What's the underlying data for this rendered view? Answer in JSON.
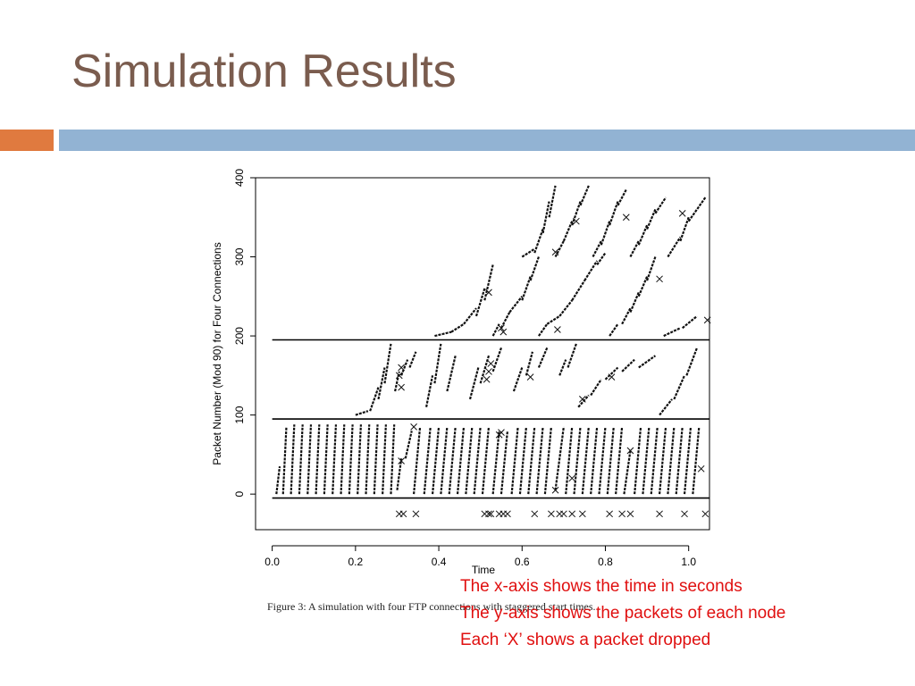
{
  "slide": {
    "title": "Simulation Results",
    "accent_colors": {
      "orange": "#e07a3f",
      "blue": "#92b3d3",
      "title": "#7a5c4e",
      "notes": "#e01010"
    }
  },
  "figure": {
    "caption": "Figure 3: A simulation with four FTP connections with staggered start times."
  },
  "notes": [
    "The x-axis shows the time in seconds",
    "The y-axis shows the packets of each node",
    "Each ‘X’ shows a packet dropped"
  ],
  "chart_data": {
    "type": "scatter",
    "title": "",
    "xlabel": "Time",
    "ylabel": "Packet Number (Mod 90) for Four Connections",
    "xlim": [
      -0.04,
      1.05
    ],
    "ylim": [
      -45,
      400
    ],
    "x_ticks": [
      "0.0",
      "0.2",
      "0.4",
      "0.6",
      "0.8",
      "1.0"
    ],
    "x_tick_values": [
      0.0,
      0.2,
      0.4,
      0.6,
      0.8,
      1.0
    ],
    "y_ticks": [
      "0",
      "100",
      "200",
      "300",
      "400"
    ],
    "y_tick_values": [
      0,
      100,
      200,
      300,
      400
    ],
    "separator_lines_y": [
      -5,
      95,
      195
    ],
    "grid": false,
    "legend": "none",
    "series": [
      {
        "connection": 1,
        "base": 0,
        "segments": [
          [
            0.01,
            0.018,
            0,
            35
          ],
          [
            0.026,
            0.034,
            0,
            85
          ],
          [
            0.045,
            0.053,
            0,
            88
          ],
          [
            0.065,
            0.073,
            0,
            88
          ],
          [
            0.085,
            0.093,
            0,
            88
          ],
          [
            0.105,
            0.113,
            0,
            88
          ],
          [
            0.125,
            0.133,
            0,
            88
          ],
          [
            0.145,
            0.153,
            0,
            88
          ],
          [
            0.165,
            0.173,
            0,
            88
          ],
          [
            0.185,
            0.193,
            0,
            88
          ],
          [
            0.205,
            0.213,
            0,
            88
          ],
          [
            0.225,
            0.233,
            0,
            88
          ],
          [
            0.245,
            0.253,
            0,
            88
          ],
          [
            0.265,
            0.273,
            0,
            88
          ],
          [
            0.285,
            0.293,
            0,
            88
          ],
          [
            0.3,
            0.31,
            5,
            45
          ],
          [
            0.32,
            0.335,
            45,
            80
          ],
          [
            0.34,
            0.355,
            0,
            85
          ],
          [
            0.365,
            0.38,
            0,
            85
          ],
          [
            0.385,
            0.4,
            0,
            85
          ],
          [
            0.405,
            0.42,
            0,
            85
          ],
          [
            0.425,
            0.44,
            0,
            85
          ],
          [
            0.445,
            0.46,
            0,
            85
          ],
          [
            0.465,
            0.48,
            0,
            85
          ],
          [
            0.485,
            0.5,
            0,
            85
          ],
          [
            0.505,
            0.52,
            0,
            85
          ],
          [
            0.53,
            0.545,
            0,
            80
          ],
          [
            0.55,
            0.565,
            0,
            80
          ],
          [
            0.575,
            0.59,
            0,
            85
          ],
          [
            0.595,
            0.61,
            0,
            85
          ],
          [
            0.615,
            0.63,
            0,
            85
          ],
          [
            0.635,
            0.65,
            0,
            85
          ],
          [
            0.655,
            0.67,
            0,
            85
          ],
          [
            0.68,
            0.7,
            5,
            85
          ],
          [
            0.705,
            0.72,
            0,
            85
          ],
          [
            0.725,
            0.74,
            0,
            85
          ],
          [
            0.745,
            0.76,
            0,
            85
          ],
          [
            0.765,
            0.78,
            0,
            85
          ],
          [
            0.785,
            0.8,
            0,
            85
          ],
          [
            0.805,
            0.82,
            0,
            85
          ],
          [
            0.825,
            0.84,
            0,
            85
          ],
          [
            0.845,
            0.86,
            0,
            55
          ],
          [
            0.87,
            0.885,
            0,
            85
          ],
          [
            0.89,
            0.905,
            0,
            85
          ],
          [
            0.91,
            0.925,
            0,
            85
          ],
          [
            0.93,
            0.945,
            0,
            85
          ],
          [
            0.95,
            0.965,
            0,
            85
          ],
          [
            0.97,
            0.985,
            0,
            85
          ],
          [
            0.99,
            1.005,
            0,
            85
          ],
          [
            1.01,
            1.025,
            0,
            85
          ]
        ]
      },
      {
        "connection": 2,
        "base": 100,
        "segments": [
          [
            0.2,
            0.23,
            100,
            105
          ],
          [
            0.235,
            0.255,
            105,
            135
          ],
          [
            0.255,
            0.27,
            120,
            160
          ],
          [
            0.27,
            0.285,
            140,
            190
          ],
          [
            0.295,
            0.305,
            130,
            155
          ],
          [
            0.31,
            0.325,
            150,
            170
          ],
          [
            0.33,
            0.345,
            160,
            180
          ],
          [
            0.37,
            0.385,
            110,
            150
          ],
          [
            0.39,
            0.405,
            140,
            190
          ],
          [
            0.42,
            0.44,
            130,
            175
          ],
          [
            0.475,
            0.495,
            120,
            160
          ],
          [
            0.5,
            0.52,
            140,
            175
          ],
          [
            0.53,
            0.55,
            155,
            185
          ],
          [
            0.58,
            0.6,
            130,
            160
          ],
          [
            0.61,
            0.625,
            150,
            180
          ],
          [
            0.64,
            0.66,
            160,
            185
          ],
          [
            0.69,
            0.705,
            150,
            170
          ],
          [
            0.71,
            0.73,
            160,
            190
          ],
          [
            0.735,
            0.76,
            110,
            125
          ],
          [
            0.765,
            0.79,
            125,
            145
          ],
          [
            0.8,
            0.83,
            145,
            160
          ],
          [
            0.84,
            0.87,
            155,
            170
          ],
          [
            0.88,
            0.92,
            160,
            175
          ],
          [
            0.93,
            0.96,
            100,
            120
          ],
          [
            0.965,
            0.99,
            120,
            150
          ],
          [
            0.995,
            1.02,
            150,
            185
          ]
        ]
      },
      {
        "connection": 3,
        "base": 200,
        "segments": [
          [
            0.39,
            0.43,
            200,
            205
          ],
          [
            0.43,
            0.46,
            205,
            215
          ],
          [
            0.46,
            0.49,
            215,
            235
          ],
          [
            0.49,
            0.51,
            225,
            260
          ],
          [
            0.51,
            0.53,
            245,
            290
          ],
          [
            0.53,
            0.545,
            200,
            215
          ],
          [
            0.55,
            0.57,
            210,
            230
          ],
          [
            0.57,
            0.6,
            230,
            250
          ],
          [
            0.6,
            0.62,
            245,
            275
          ],
          [
            0.62,
            0.64,
            270,
            300
          ],
          [
            0.64,
            0.66,
            200,
            215
          ],
          [
            0.66,
            0.69,
            215,
            225
          ],
          [
            0.69,
            0.72,
            225,
            245
          ],
          [
            0.72,
            0.75,
            245,
            270
          ],
          [
            0.75,
            0.78,
            270,
            295
          ],
          [
            0.78,
            0.8,
            290,
            305
          ],
          [
            0.81,
            0.83,
            200,
            215
          ],
          [
            0.84,
            0.86,
            215,
            235
          ],
          [
            0.86,
            0.88,
            230,
            255
          ],
          [
            0.88,
            0.9,
            250,
            275
          ],
          [
            0.9,
            0.92,
            270,
            300
          ],
          [
            0.94,
            0.98,
            200,
            210
          ],
          [
            0.985,
            1.02,
            210,
            225
          ]
        ]
      },
      {
        "connection": 4,
        "base": 300,
        "segments": [
          [
            0.6,
            0.63,
            300,
            310
          ],
          [
            0.63,
            0.65,
            305,
            335
          ],
          [
            0.65,
            0.665,
            330,
            370
          ],
          [
            0.665,
            0.68,
            350,
            390
          ],
          [
            0.68,
            0.7,
            300,
            320
          ],
          [
            0.7,
            0.72,
            320,
            345
          ],
          [
            0.72,
            0.74,
            340,
            370
          ],
          [
            0.74,
            0.76,
            365,
            390
          ],
          [
            0.77,
            0.79,
            300,
            320
          ],
          [
            0.79,
            0.81,
            315,
            345
          ],
          [
            0.81,
            0.83,
            340,
            370
          ],
          [
            0.83,
            0.85,
            365,
            385
          ],
          [
            0.86,
            0.88,
            300,
            320
          ],
          [
            0.88,
            0.9,
            315,
            340
          ],
          [
            0.9,
            0.92,
            335,
            360
          ],
          [
            0.92,
            0.945,
            355,
            375
          ],
          [
            0.95,
            0.98,
            300,
            325
          ],
          [
            0.98,
            1.0,
            320,
            350
          ],
          [
            1.0,
            1.04,
            345,
            375
          ]
        ]
      }
    ],
    "drops_on_curves": [
      [
        0.31,
        42
      ],
      [
        0.34,
        85
      ],
      [
        0.55,
        78
      ],
      [
        0.545,
        75
      ],
      [
        0.68,
        5
      ],
      [
        0.72,
        20
      ],
      [
        0.86,
        55
      ],
      [
        0.305,
        150
      ],
      [
        0.31,
        135
      ],
      [
        0.31,
        160
      ],
      [
        0.515,
        145
      ],
      [
        0.52,
        155
      ],
      [
        0.525,
        165
      ],
      [
        0.62,
        148
      ],
      [
        0.745,
        120
      ],
      [
        0.815,
        148
      ],
      [
        1.03,
        32
      ],
      [
        0.52,
        255
      ],
      [
        0.55,
        210
      ],
      [
        0.555,
        205
      ],
      [
        0.685,
        208
      ],
      [
        0.93,
        272
      ],
      [
        1.045,
        220
      ],
      [
        0.68,
        306
      ],
      [
        0.73,
        345
      ],
      [
        0.85,
        350
      ],
      [
        0.985,
        355
      ]
    ],
    "drops_axis_x": [
      0.305,
      0.315,
      0.345,
      0.51,
      0.52,
      0.525,
      0.545,
      0.555,
      0.565,
      0.63,
      0.67,
      0.69,
      0.7,
      0.72,
      0.745,
      0.81,
      0.84,
      0.86,
      0.93,
      0.99,
      1.04
    ]
  }
}
